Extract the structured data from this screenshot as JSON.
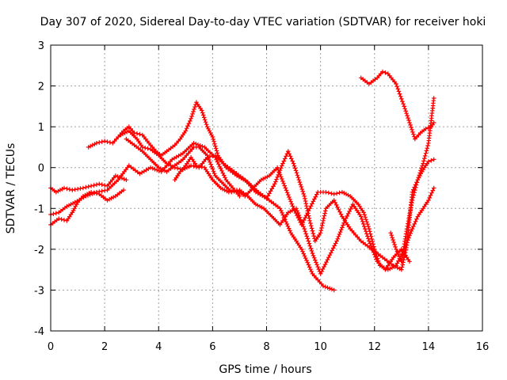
{
  "chart_data": {
    "type": "line",
    "title": "Day 307 of 2020, Sidereal Day-to-day VTEC variation (SDTVAR) for receiver hoki",
    "xlabel": "GPS time / hours",
    "ylabel": "SDTVAR / TECUs",
    "xlim": [
      0,
      16
    ],
    "ylim": [
      -4,
      3
    ],
    "xticks": [
      0,
      2,
      4,
      6,
      8,
      10,
      12,
      14,
      16
    ],
    "yticks": [
      -4,
      -3,
      -2,
      -1,
      0,
      1,
      2,
      3
    ],
    "grid": true,
    "marker": "plus",
    "color": "#ff0000",
    "series": [
      {
        "x": [
          0.0,
          0.2,
          0.5,
          0.8,
          1.2,
          1.5,
          1.8,
          2.1,
          2.4,
          2.8
        ],
        "y": [
          -0.5,
          -0.6,
          -0.5,
          -0.55,
          -0.5,
          -0.45,
          -0.4,
          -0.45,
          -0.2,
          -0.3
        ]
      },
      {
        "x": [
          0.0,
          0.3,
          0.6,
          0.9,
          1.3,
          1.7,
          2.1,
          2.5,
          2.9,
          3.3,
          3.7,
          4.1,
          4.5,
          4.9,
          5.3,
          5.7,
          6.1,
          6.5,
          7.0
        ],
        "y": [
          -1.15,
          -1.1,
          -0.95,
          -0.85,
          -0.7,
          -0.6,
          -0.55,
          -0.3,
          0.05,
          -0.15,
          0.0,
          -0.1,
          0.2,
          0.35,
          0.6,
          0.5,
          0.25,
          -0.3,
          -0.7
        ]
      },
      {
        "x": [
          0.0,
          0.3,
          0.6,
          0.8,
          1.0,
          1.2,
          1.5,
          1.8,
          2.1,
          2.4,
          2.7
        ],
        "y": [
          -1.4,
          -1.25,
          -1.3,
          -1.1,
          -0.85,
          -0.7,
          -0.6,
          -0.65,
          -0.8,
          -0.7,
          -0.55
        ]
      },
      {
        "x": [
          1.4,
          1.7,
          2.0,
          2.3,
          2.5,
          2.7,
          2.9,
          3.1,
          3.4,
          3.7,
          3.9,
          4.1,
          4.3,
          4.6,
          4.8,
          5.0,
          5.2,
          5.4,
          5.6,
          5.8,
          6.0,
          6.2,
          6.5,
          6.9,
          7.3,
          7.7,
          8.1,
          8.5,
          8.9,
          9.3,
          9.7,
          10.1,
          10.5
        ],
        "y": [
          0.5,
          0.6,
          0.65,
          0.6,
          0.75,
          0.9,
          1.0,
          0.85,
          0.8,
          0.55,
          0.4,
          0.3,
          0.4,
          0.55,
          0.7,
          0.9,
          1.2,
          1.6,
          1.4,
          1.0,
          0.75,
          0.3,
          0.0,
          -0.2,
          -0.35,
          -0.6,
          -0.8,
          -1.0,
          -1.6,
          -2.0,
          -2.6,
          -2.9,
          -3.0
        ]
      },
      {
        "x": [
          2.6,
          2.9,
          3.2,
          3.4,
          3.7,
          4.0,
          4.3,
          4.6,
          4.9,
          5.2,
          5.5,
          5.8,
          6.1,
          6.4,
          6.8,
          7.2,
          7.6,
          8.0,
          8.3,
          8.6,
          8.8,
          9.0,
          9.2,
          9.4,
          9.6,
          9.8,
          10.0,
          10.2,
          10.5,
          10.8,
          11.1,
          11.5,
          11.9,
          12.3,
          12.7,
          13.0,
          13.2,
          13.4,
          13.6,
          13.8,
          14.0,
          14.2
        ],
        "y": [
          0.8,
          0.9,
          0.7,
          0.5,
          0.45,
          0.3,
          0.1,
          0.0,
          -0.05,
          0.05,
          0.0,
          0.25,
          0.3,
          0.1,
          -0.1,
          -0.3,
          -0.6,
          -0.75,
          -0.4,
          0.1,
          0.4,
          0.1,
          -0.3,
          -0.7,
          -1.3,
          -1.8,
          -1.6,
          -1.0,
          -0.8,
          -1.2,
          -1.5,
          -1.8,
          -2.0,
          -2.2,
          -2.4,
          -2.5,
          -1.9,
          -0.6,
          -0.3,
          -0.05,
          0.15,
          0.2
        ]
      },
      {
        "x": [
          2.8,
          3.1,
          3.4,
          3.7,
          4.0,
          4.3,
          4.6,
          4.9,
          5.1,
          5.3,
          5.5,
          5.8,
          6.1,
          6.4,
          6.7,
          7.0,
          7.3,
          7.6,
          7.9,
          8.2,
          8.5,
          8.8,
          9.1,
          9.4,
          9.7,
          10.0,
          10.3,
          10.6,
          10.9,
          11.2,
          11.5,
          11.8,
          12.1,
          12.4,
          12.7,
          13.0,
          13.3
        ],
        "y": [
          0.7,
          0.55,
          0.4,
          0.2,
          0.0,
          -0.1,
          0.05,
          0.2,
          0.35,
          0.5,
          0.5,
          0.3,
          -0.2,
          -0.4,
          -0.6,
          -0.55,
          -0.7,
          -0.9,
          -1.0,
          -1.2,
          -1.4,
          -1.1,
          -1.0,
          -1.5,
          -2.1,
          -2.6,
          -2.2,
          -1.8,
          -1.3,
          -0.9,
          -1.2,
          -1.8,
          -2.3,
          -2.5,
          -2.2,
          -2.0,
          -2.3
        ]
      },
      {
        "x": [
          4.6,
          4.8,
          5.0,
          5.2,
          5.4,
          5.7,
          6.0,
          6.3,
          6.6,
          6.9,
          7.2,
          7.5,
          7.8,
          8.1,
          8.4,
          8.7,
          9.0,
          9.3,
          9.6,
          9.9,
          10.2,
          10.5,
          10.8,
          11.1,
          11.4,
          11.6,
          11.8,
          12.0,
          12.2,
          12.5,
          12.8,
          13.1,
          13.4,
          13.6,
          13.8,
          14.0,
          14.2
        ],
        "y": [
          -0.3,
          -0.1,
          0.05,
          0.25,
          0.05,
          0.0,
          -0.3,
          -0.5,
          -0.6,
          -0.55,
          -0.7,
          -0.5,
          -0.3,
          -0.2,
          0.0,
          -0.5,
          -1.0,
          -1.4,
          -1.0,
          -0.6,
          -0.6,
          -0.65,
          -0.6,
          -0.7,
          -0.9,
          -1.1,
          -1.5,
          -2.0,
          -2.4,
          -2.5,
          -2.4,
          -2.0,
          -1.5,
          -1.2,
          -1.0,
          -0.8,
          -0.5
        ]
      },
      {
        "x": [
          11.5,
          11.8,
          12.1,
          12.3,
          12.5,
          12.8,
          13.1,
          13.3,
          13.5,
          13.7,
          13.9,
          14.1,
          14.2
        ],
        "y": [
          2.2,
          2.05,
          2.2,
          2.35,
          2.3,
          2.05,
          1.5,
          1.1,
          0.7,
          0.85,
          0.95,
          1.0,
          1.1
        ]
      },
      {
        "x": [
          12.6,
          12.8,
          13.0,
          13.2,
          13.4,
          13.6,
          13.8,
          14.0,
          14.2
        ],
        "y": [
          -1.6,
          -2.0,
          -2.3,
          -1.5,
          -0.8,
          -0.3,
          0.1,
          0.6,
          1.7
        ]
      }
    ]
  }
}
